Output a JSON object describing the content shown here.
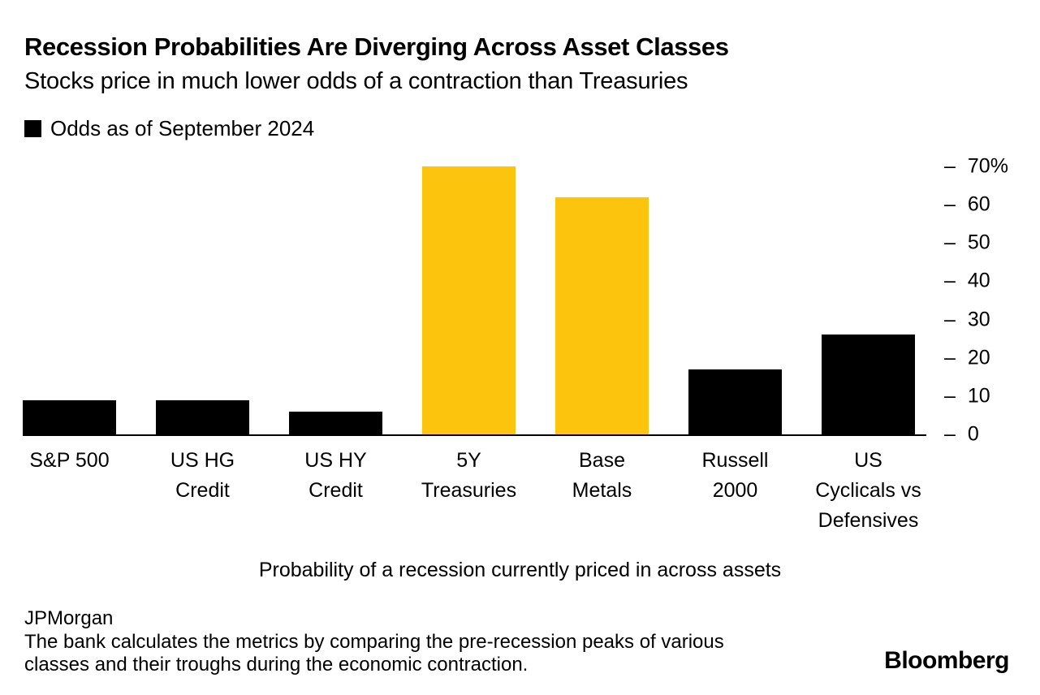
{
  "legend": {
    "label": "Odds as of September 2024",
    "swatch_color": "#000000"
  },
  "chart_data": {
    "type": "bar",
    "title": "Recession Probabilities Are Diverging Across Asset Classes",
    "subtitle": "Stocks price in much lower odds of a contraction than Treasuries",
    "categories": [
      "S&P 500",
      "US HG Credit",
      "US HY Credit",
      "5Y Treasuries",
      "Base Metals",
      "Russell 2000",
      "US Cyclicals vs Defensives"
    ],
    "categories_wrapped": [
      [
        "S&P 500"
      ],
      [
        "US HG",
        "Credit"
      ],
      [
        "US HY",
        "Credit"
      ],
      [
        "5Y",
        "Treasuries"
      ],
      [
        "Base",
        "Metals"
      ],
      [
        "Russell",
        "2000"
      ],
      [
        "US",
        "Cyclicals vs",
        "Defensives"
      ]
    ],
    "series": [
      {
        "name": "Odds as of September 2024",
        "values": [
          9,
          9,
          6,
          70,
          62,
          17,
          26
        ]
      }
    ],
    "bar_colors": [
      "#000000",
      "#000000",
      "#000000",
      "#FDC40D",
      "#FDC40D",
      "#000000",
      "#000000"
    ],
    "xlabel": "Probability of a recession currently priced in across assets",
    "ylabel": "",
    "ylim": [
      0,
      70
    ],
    "yticks": [
      {
        "label": "70%",
        "value": 70
      },
      {
        "label": "60",
        "value": 60
      },
      {
        "label": "50",
        "value": 50
      },
      {
        "label": "40",
        "value": 40
      },
      {
        "label": "30",
        "value": 30
      },
      {
        "label": "20",
        "value": 20
      },
      {
        "label": "10",
        "value": 10
      },
      {
        "label": "0",
        "value": 0
      }
    ],
    "tick_glyph": "–",
    "y_axis_side": "right",
    "grid": false,
    "legend_position": "top-left",
    "colors": {
      "accent_yellow": "#FDC40D",
      "bar_black": "#000000"
    }
  },
  "footer": {
    "source": "JPMorgan",
    "note_lines": [
      "The bank calculates the metrics by comparing the pre-recession peaks of various",
      "classes and their troughs during the economic contraction."
    ],
    "brand": "Bloomberg"
  }
}
